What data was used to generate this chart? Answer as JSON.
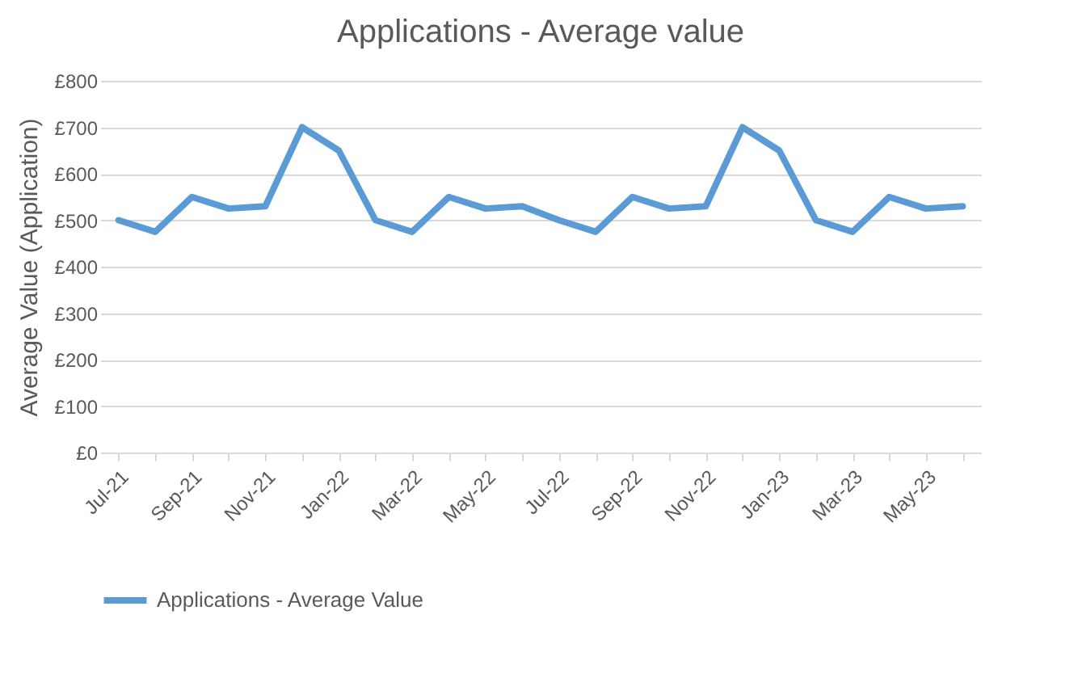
{
  "chart_data": {
    "type": "line",
    "title": "Applications  - Average value",
    "ylabel": "Average Value (Application)",
    "categories": [
      "Jul-21",
      null,
      "Sep-21",
      null,
      "Nov-21",
      null,
      "Jan-22",
      null,
      "Mar-22",
      null,
      "May-22",
      null,
      "Jul-22",
      null,
      "Sep-22",
      null,
      "Nov-22",
      null,
      "Jan-23",
      null,
      "Mar-23",
      null,
      "May-23",
      null
    ],
    "series": [
      {
        "name": "Applications - Average Value",
        "color": "#5b9bd5",
        "values": [
          500,
          475,
          550,
          525,
          530,
          700,
          650,
          500,
          475,
          550,
          525,
          530,
          500,
          475,
          550,
          525,
          530,
          700,
          650,
          500,
          475,
          550,
          525,
          530
        ]
      }
    ],
    "ylim": [
      0,
      800
    ],
    "yticks": [
      {
        "value": 0,
        "label": "£0"
      },
      {
        "value": 100,
        "label": "£100"
      },
      {
        "value": 200,
        "label": "£200"
      },
      {
        "value": 300,
        "label": "£300"
      },
      {
        "value": 400,
        "label": "£400"
      },
      {
        "value": 500,
        "label": "£500"
      },
      {
        "value": 600,
        "label": "£600"
      },
      {
        "value": 700,
        "label": "£700"
      },
      {
        "value": 800,
        "label": "£800"
      }
    ],
    "grid": "y",
    "legend": "bottom",
    "marker": "none",
    "line_style": "solid"
  }
}
